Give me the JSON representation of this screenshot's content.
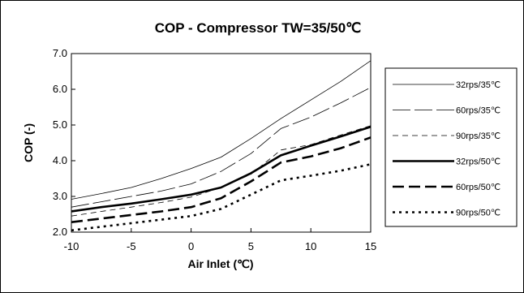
{
  "chart_data": {
    "type": "line",
    "title": "COP - Compressor TW=35/50℃",
    "xlabel": "Air Inlet (℃)",
    "ylabel": "COP (-)",
    "xlim": [
      -10,
      15
    ],
    "ylim": [
      2.0,
      7.0
    ],
    "xticks": [
      "-10",
      "-5",
      "0",
      "5",
      "10",
      "15"
    ],
    "yticks": [
      "2.0",
      "3.0",
      "4.0",
      "5.0",
      "6.0",
      "7.0"
    ],
    "grid": false,
    "legend_position": "right",
    "series": [
      {
        "name": "32rps/35℃",
        "style": "thin-solid",
        "x": [
          -10,
          -7.5,
          -5,
          -2.5,
          0,
          2.5,
          5,
          7.5,
          10,
          12.5,
          15
        ],
        "y": [
          2.92,
          3.08,
          3.25,
          3.5,
          3.78,
          4.1,
          4.62,
          5.18,
          5.7,
          6.22,
          6.8
        ]
      },
      {
        "name": "60rps/35℃",
        "style": "thin-longdash",
        "x": [
          -10,
          -7.5,
          -5,
          -2.5,
          0,
          2.5,
          5,
          7.5,
          10,
          12.5,
          15
        ],
        "y": [
          2.7,
          2.85,
          3.0,
          3.15,
          3.35,
          3.7,
          4.2,
          4.9,
          5.22,
          5.62,
          6.05
        ]
      },
      {
        "name": "90rps/35℃",
        "style": "thin-dash",
        "x": [
          -10,
          -7.5,
          -5,
          -2.5,
          0,
          2.5,
          5,
          7.5,
          10,
          12.5,
          15
        ],
        "y": [
          2.45,
          2.58,
          2.7,
          2.83,
          2.98,
          3.25,
          3.62,
          4.3,
          4.45,
          4.72,
          4.98
        ]
      },
      {
        "name": "32rps/50℃",
        "style": "thick-solid",
        "x": [
          -10,
          -7.5,
          -5,
          -2.5,
          0,
          2.5,
          5,
          7.5,
          10,
          12.5,
          15
        ],
        "y": [
          2.58,
          2.7,
          2.8,
          2.92,
          3.05,
          3.25,
          3.65,
          4.15,
          4.42,
          4.68,
          4.95
        ]
      },
      {
        "name": "60rps/50℃",
        "style": "thick-dash",
        "x": [
          -10,
          -7.5,
          -5,
          -2.5,
          0,
          2.5,
          5,
          7.5,
          10,
          12.5,
          15
        ],
        "y": [
          2.28,
          2.38,
          2.48,
          2.58,
          2.7,
          2.95,
          3.42,
          3.95,
          4.12,
          4.35,
          4.65
        ]
      },
      {
        "name": "90rps/50℃",
        "style": "thick-dot",
        "x": [
          -10,
          -7.5,
          -5,
          -2.5,
          0,
          2.5,
          5,
          7.5,
          10,
          12.5,
          15
        ],
        "y": [
          2.05,
          2.15,
          2.25,
          2.35,
          2.45,
          2.65,
          3.05,
          3.45,
          3.58,
          3.72,
          3.9
        ]
      }
    ]
  }
}
